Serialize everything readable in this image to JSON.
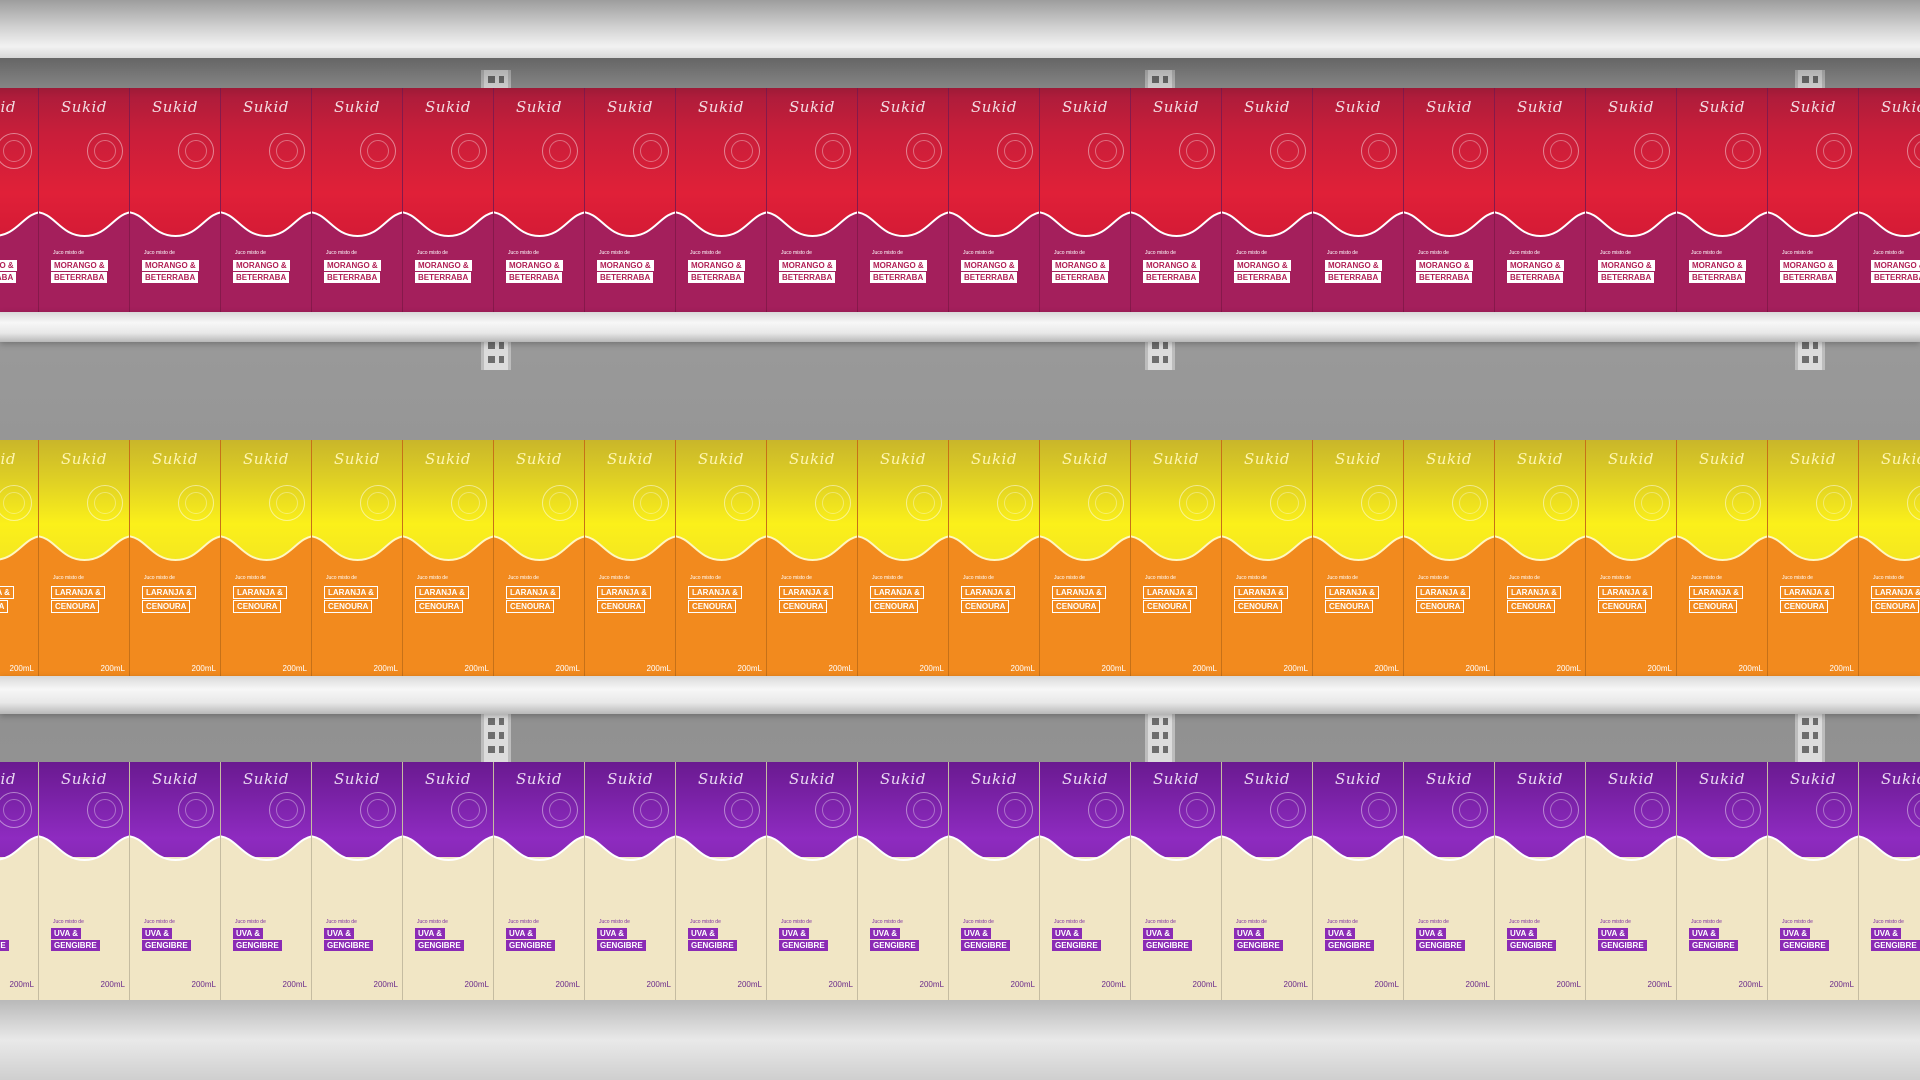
{
  "brand": "Sukid",
  "shelves": [
    {
      "id": "strawberry",
      "subtitle": "Juco misto de",
      "flavor_line1": "MORANGO &",
      "flavor_line2": "BETERRABA",
      "volume": "",
      "colors": {
        "top": "#e02038",
        "bottom": "#a41f5c"
      }
    },
    {
      "id": "orange",
      "subtitle": "Juco misto de",
      "flavor_line1": "LARANJA &",
      "flavor_line2": "CENOURA",
      "volume": "200mL",
      "colors": {
        "top": "#fbf01a",
        "bottom": "#f28a1e"
      }
    },
    {
      "id": "grape",
      "subtitle": "Juco misto de",
      "flavor_line1": "UVA &",
      "flavor_line2": "GENGIBRE",
      "volume": "200mL",
      "colors": {
        "top": "#8e2bc0",
        "bottom": "#f1e6c5"
      }
    }
  ],
  "boxes_per_row": 22
}
